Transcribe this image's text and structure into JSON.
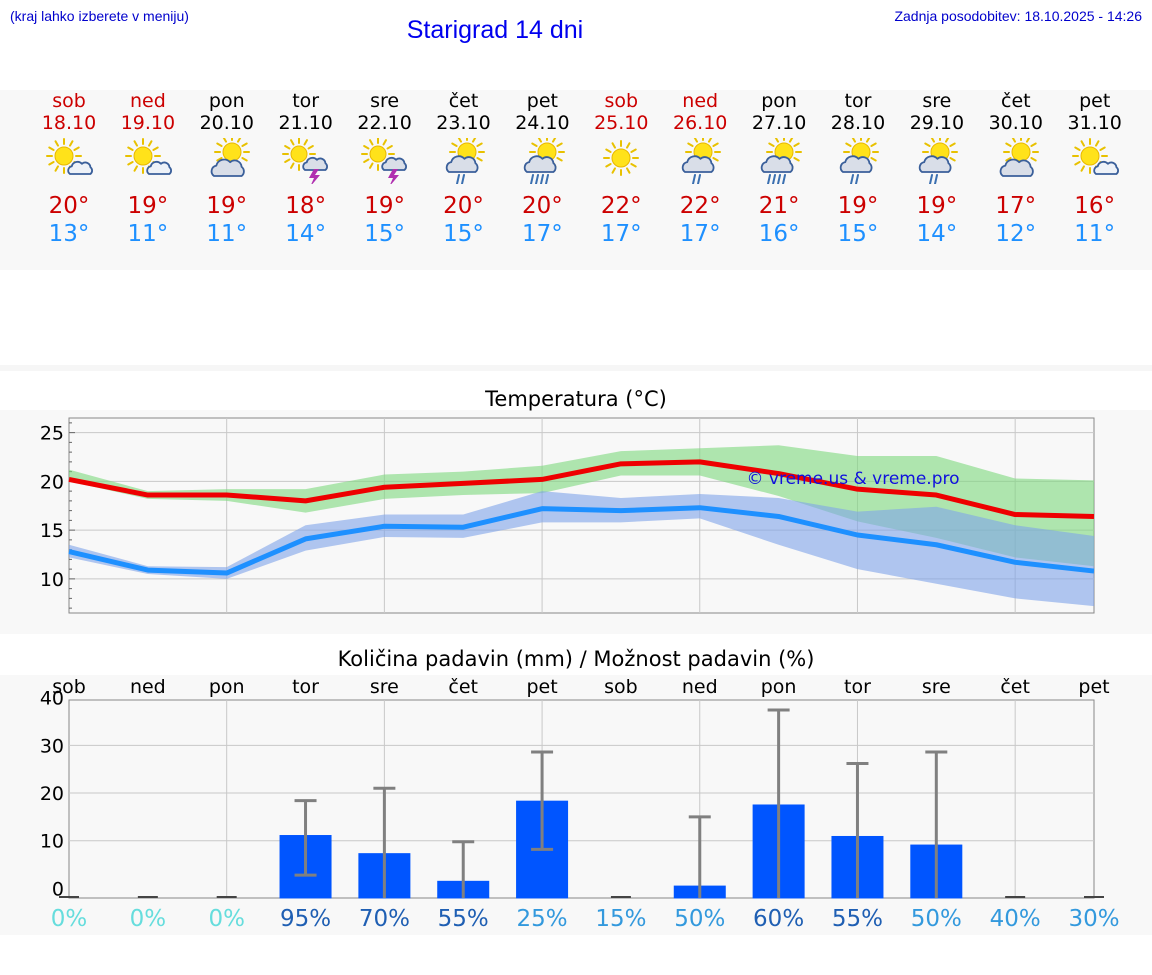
{
  "header": {
    "left_note": "(kraj lahko izberete v meniju)",
    "title": "Starigrad 14 dni",
    "updated": "Zadnja posodobitev: 18.10.2025 - 14:26"
  },
  "days": [
    {
      "name": "sob",
      "date": "18.10",
      "weekend": true,
      "icon": "sun-cloud-icon",
      "tmax": "20°",
      "tmin": "13°"
    },
    {
      "name": "ned",
      "date": "19.10",
      "weekend": true,
      "icon": "sun-cloud-icon",
      "tmax": "19°",
      "tmin": "11°"
    },
    {
      "name": "pon",
      "date": "20.10",
      "weekend": false,
      "icon": "cloud-sun-icon",
      "tmax": "19°",
      "tmin": "11°"
    },
    {
      "name": "tor",
      "date": "21.10",
      "weekend": false,
      "icon": "sun-thunder-icon",
      "tmax": "18°",
      "tmin": "14°"
    },
    {
      "name": "sre",
      "date": "22.10",
      "weekend": false,
      "icon": "sun-thunder-icon",
      "tmax": "19°",
      "tmin": "15°"
    },
    {
      "name": "čet",
      "date": "23.10",
      "weekend": false,
      "icon": "sun-light-rain-icon",
      "tmax": "20°",
      "tmin": "15°"
    },
    {
      "name": "pet",
      "date": "24.10",
      "weekend": false,
      "icon": "sun-rain-icon",
      "tmax": "20°",
      "tmin": "17°"
    },
    {
      "name": "sob",
      "date": "25.10",
      "weekend": true,
      "icon": "sun-icon",
      "tmax": "22°",
      "tmin": "17°"
    },
    {
      "name": "ned",
      "date": "26.10",
      "weekend": true,
      "icon": "sun-light-rain-icon",
      "tmax": "22°",
      "tmin": "17°"
    },
    {
      "name": "pon",
      "date": "27.10",
      "weekend": false,
      "icon": "sun-rain-icon",
      "tmax": "21°",
      "tmin": "16°"
    },
    {
      "name": "tor",
      "date": "28.10",
      "weekend": false,
      "icon": "sun-light-rain-icon",
      "tmax": "19°",
      "tmin": "15°"
    },
    {
      "name": "sre",
      "date": "29.10",
      "weekend": false,
      "icon": "sun-light-rain-icon",
      "tmax": "19°",
      "tmin": "14°"
    },
    {
      "name": "čet",
      "date": "30.10",
      "weekend": false,
      "icon": "cloud-sun-icon",
      "tmax": "17°",
      "tmin": "12°"
    },
    {
      "name": "pet",
      "date": "31.10",
      "weekend": false,
      "icon": "sun-cloud-icon",
      "tmax": "16°",
      "tmin": "11°"
    }
  ],
  "colors": {
    "weekend": "#cc0000",
    "tmax": "#cc0000",
    "tmin": "#1e90ff",
    "max_line": "#ee0000",
    "min_line": "#1e90ff",
    "max_band": "#7dd87d",
    "min_band": "#7ea3ea",
    "bar": "#0055ff",
    "error": "#808080"
  },
  "chart_data": [
    {
      "type": "line",
      "title": "Temperatura (°C)",
      "watermark": "© vreme.us & vreme.pro",
      "ylim": [
        6.5,
        26.5
      ],
      "yticks": [
        10,
        15,
        20,
        25
      ],
      "grid": true,
      "series": [
        {
          "name": "max",
          "values": [
            20.2,
            18.6,
            18.6,
            18.0,
            19.4,
            19.8,
            20.2,
            21.8,
            22.0,
            20.8,
            19.2,
            18.6,
            16.6,
            16.4
          ],
          "band_low": [
            20.0,
            18.2,
            18.0,
            16.8,
            18.2,
            18.6,
            18.8,
            20.6,
            20.6,
            18.5,
            15.9,
            14.2,
            12.2,
            11.3
          ],
          "band_high": [
            21.2,
            19.0,
            19.2,
            19.2,
            20.7,
            21.0,
            21.6,
            23.1,
            23.4,
            23.7,
            22.6,
            22.6,
            20.3,
            20.1
          ]
        },
        {
          "name": "min",
          "values": [
            12.8,
            10.9,
            10.6,
            14.1,
            15.4,
            15.3,
            17.2,
            17.0,
            17.3,
            16.4,
            14.5,
            13.5,
            11.7,
            10.8
          ],
          "band_low": [
            12.2,
            10.5,
            10.0,
            12.9,
            14.3,
            14.2,
            15.8,
            15.8,
            16.2,
            13.5,
            11.0,
            9.5,
            8.0,
            7.2
          ],
          "band_high": [
            13.5,
            11.3,
            11.2,
            15.5,
            16.6,
            16.6,
            19.0,
            18.3,
            18.7,
            18.3,
            16.9,
            17.4,
            15.5,
            14.4
          ]
        }
      ]
    },
    {
      "type": "bar",
      "title": "Količina padavin (mm) / Možnost padavin (%)",
      "categories": [
        "sob",
        "ned",
        "pon",
        "tor",
        "sre",
        "čet",
        "pet",
        "sob",
        "ned",
        "pon",
        "tor",
        "sre",
        "čet",
        "pet"
      ],
      "ylim": [
        -2,
        39.5
      ],
      "yticks": [
        0,
        10,
        20,
        30,
        40
      ],
      "ytick_labels": [
        "0",
        "10",
        "20",
        "30",
        "40"
      ],
      "values": [
        0,
        0,
        0,
        11.2,
        7.4,
        1.6,
        18.4,
        0,
        0.6,
        17.6,
        11.0,
        9.2,
        0,
        0
      ],
      "error_low": [
        0,
        0,
        0,
        2.8,
        0,
        0,
        8.2,
        0,
        0,
        0,
        0,
        0,
        0,
        0
      ],
      "error_high": [
        0,
        0,
        0,
        18.4,
        21.0,
        9.8,
        28.6,
        0,
        15.0,
        37.4,
        26.2,
        28.6,
        0,
        0
      ],
      "probability": [
        "0%",
        "0%",
        "0%",
        "95%",
        "70%",
        "55%",
        "25%",
        "15%",
        "50%",
        "60%",
        "55%",
        "50%",
        "40%",
        "30%"
      ],
      "probability_colors": [
        "#66dddd",
        "#66dddd",
        "#66dddd",
        "#1f5fb3",
        "#1f5fb3",
        "#1f5fb3",
        "#3399dd",
        "#3399dd",
        "#3399dd",
        "#1f5fb3",
        "#1f5fb3",
        "#3399dd",
        "#3399dd",
        "#3399dd"
      ]
    }
  ]
}
